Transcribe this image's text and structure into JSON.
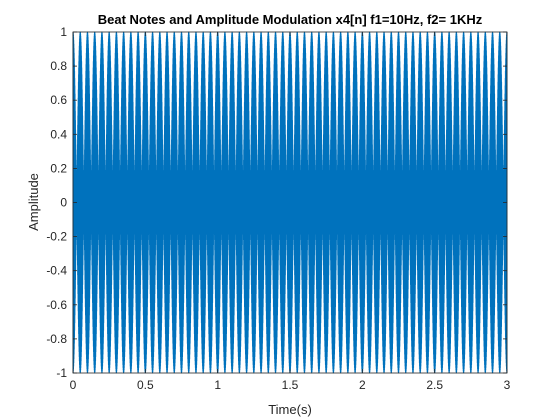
{
  "chart_data": {
    "type": "line",
    "title": "Beat Notes and Amplitude Modulation x4[n] f1=10Hz, f2= 1KHz",
    "xlabel": "Time(s)",
    "ylabel": "Amplitude",
    "xlim": [
      0,
      3
    ],
    "ylim": [
      -1,
      1
    ],
    "x_ticks": [
      0,
      0.5,
      1,
      1.5,
      2,
      2.5,
      3
    ],
    "x_tick_labels": [
      "0",
      "0.5",
      "1",
      "1.5",
      "2",
      "2.5",
      "3"
    ],
    "y_ticks": [
      -1,
      -0.8,
      -0.6,
      -0.4,
      -0.2,
      0,
      0.2,
      0.4,
      0.6,
      0.8,
      1
    ],
    "y_tick_labels": [
      "-1",
      "-0.8",
      "-0.6",
      "-0.4",
      "-0.2",
      "0",
      "0.2",
      "0.4",
      "0.6",
      "0.8",
      "1"
    ],
    "grid": false,
    "series": [
      {
        "color": "#0072BD",
        "signal": "cos(2*pi*10*t)*cos(2*pi*1000*t)",
        "f1_hz": 10,
        "f2_hz": 1000,
        "t_start": 0,
        "t_end": 3,
        "amplitude": 1
      }
    ]
  }
}
